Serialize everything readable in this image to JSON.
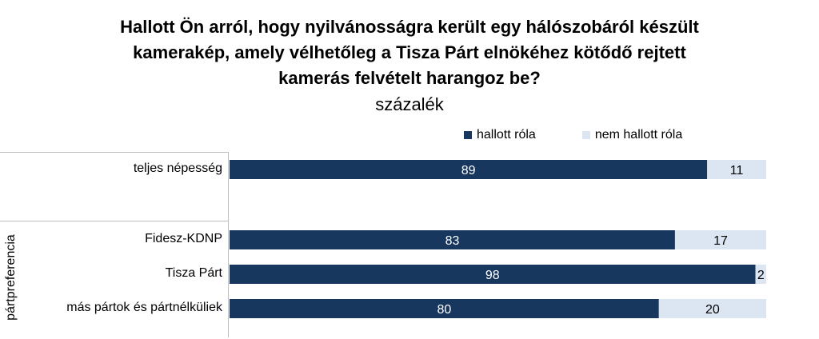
{
  "title_lines": [
    "Hallott Ön arról, hogy nyilvánosságra került egy hálószobáról készült",
    "kamerakép, amely vélhetőleg a Tisza Párt elnökéhez kötődő rejtett",
    "kamerás felvételt harangoz be?"
  ],
  "subtitle": "százalék",
  "group_label": "pártpreferencia",
  "chart_data": {
    "type": "bar",
    "orientation": "horizontal",
    "stacked": true,
    "categories": [
      "teljes népesség",
      "Fidesz-KDNP",
      "Tisza Párt",
      "más pártok és pártnélküliek"
    ],
    "series": [
      {
        "name": "hallott róla",
        "values": [
          89,
          83,
          98,
          80
        ],
        "color": "#17375e",
        "label_color": "#ffffff"
      },
      {
        "name": "nem hallott róla",
        "values": [
          11,
          17,
          2,
          20
        ],
        "color": "#dce6f2",
        "label_color": "#000000"
      }
    ],
    "xlim": [
      0,
      100
    ],
    "legend_position": "top-right",
    "grid": false
  }
}
